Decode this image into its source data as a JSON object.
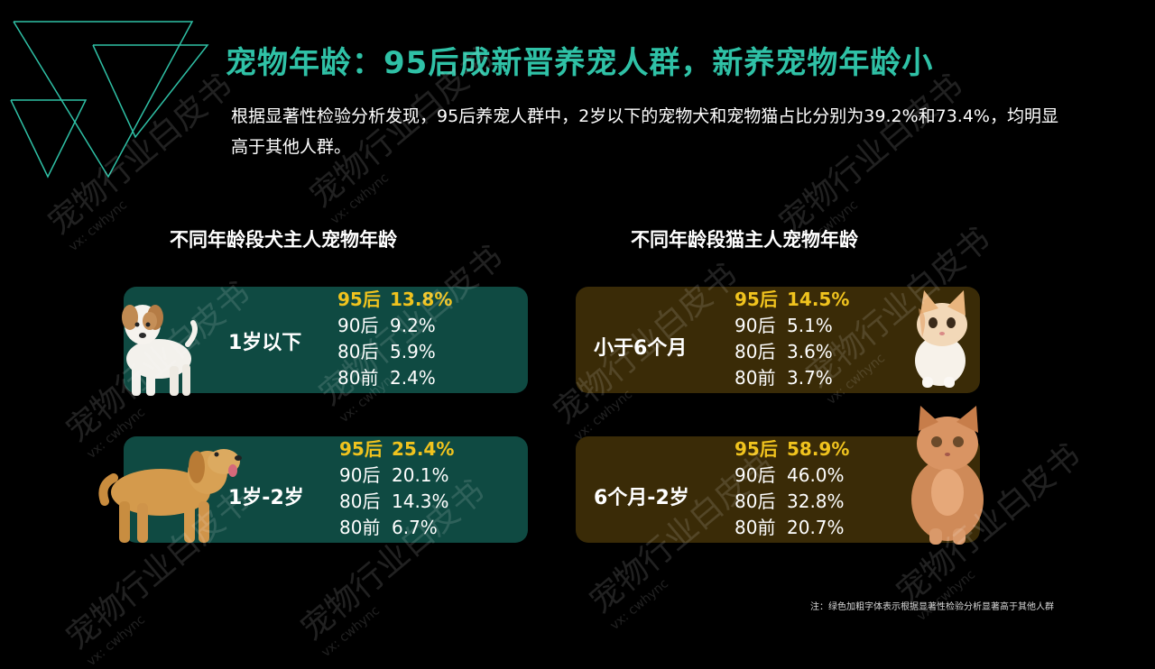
{
  "header": {
    "title": "宠物年龄：95后成新晋养宠人群，新养宠物年龄小",
    "description": "根据显著性检验分析发现，95后养宠人群中，2岁以下的宠物犬和宠物猫占比分别为39.2%和73.4%，均明显高于其他人群。"
  },
  "dog_section": {
    "title": "不同年龄段犬主人宠物年龄",
    "cards": [
      {
        "label": "1岁以下",
        "stats": [
          {
            "group": "95后",
            "value": "13.8%",
            "highlight": true
          },
          {
            "group": "90后",
            "value": "9.2%",
            "highlight": false
          },
          {
            "group": "80后",
            "value": "5.9%",
            "highlight": false
          },
          {
            "group": "80前",
            "value": "2.4%",
            "highlight": false
          }
        ]
      },
      {
        "label": "1岁-2岁",
        "stats": [
          {
            "group": "95后",
            "value": "25.4%",
            "highlight": true
          },
          {
            "group": "90后",
            "value": "20.1%",
            "highlight": false
          },
          {
            "group": "80后",
            "value": "14.3%",
            "highlight": false
          },
          {
            "group": "80前",
            "value": "6.7%",
            "highlight": false
          }
        ]
      }
    ]
  },
  "cat_section": {
    "title": "不同年龄段猫主人宠物年龄",
    "cards": [
      {
        "label": "小于6个月",
        "stats": [
          {
            "group": "95后",
            "value": "14.5%",
            "highlight": true
          },
          {
            "group": "90后",
            "value": "5.1%",
            "highlight": false
          },
          {
            "group": "80后",
            "value": "3.6%",
            "highlight": false
          },
          {
            "group": "80前",
            "value": "3.7%",
            "highlight": false
          }
        ]
      },
      {
        "label": "6个月-2岁",
        "stats": [
          {
            "group": "95后",
            "value": "58.9%",
            "highlight": true
          },
          {
            "group": "90后",
            "value": "46.0%",
            "highlight": false
          },
          {
            "group": "80后",
            "value": "32.8%",
            "highlight": false
          },
          {
            "group": "80前",
            "value": "20.7%",
            "highlight": false
          }
        ]
      }
    ]
  },
  "footnote": "注：绿色加粗字体表示根据显著性检验分析显著高于其他人群",
  "watermark": {
    "text": "宠物行业白皮书",
    "sub": "vx: cwhync"
  },
  "colors": {
    "title": "#2fc1a6",
    "highlight": "#f0c31e",
    "dog_card": "#0f4a42",
    "cat_card": "#3a2b07",
    "background": "#000000"
  },
  "icons": [
    "triangle-decoration",
    "puppy-image",
    "golden-retriever-image",
    "kitten-image",
    "cat-image"
  ]
}
